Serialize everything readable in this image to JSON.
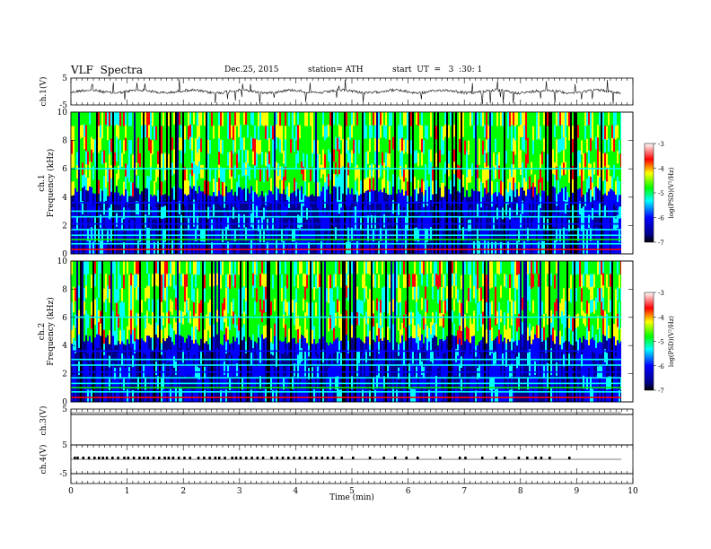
{
  "header": {
    "title": "VLF  Spectra",
    "date": "Dec.25, 2015",
    "station": "station= ATH",
    "start": "start  UT  =   3  :30: 1"
  },
  "colorbar_label": "log(PSD)(V²/Hz)",
  "colorbar_ticks": [
    "-3",
    "-4",
    "-5",
    "-6",
    "-7"
  ],
  "colorbar_colors": [
    "#000000",
    "#00008b",
    "#0000ff",
    "#00ffff",
    "#00ff00",
    "#ffff00",
    "#ff0000",
    "#ffffff"
  ],
  "chart_data": [
    {
      "type": "line",
      "panel": "ch1-waveform",
      "ylabel": "ch.1(V)",
      "yticks": [
        "5",
        "-5"
      ],
      "ylim": [
        -5,
        5
      ],
      "xlim": [
        0,
        10
      ],
      "signal": "continuous noise near 0 V with frequent spikes"
    },
    {
      "type": "heatmap",
      "panel": "ch1-spectrogram",
      "ylabel": "ch.1",
      "ylabel2": "Frequency  (kHz)",
      "yticks": [
        "0",
        "2",
        "4",
        "6",
        "8",
        "10"
      ],
      "ylim": [
        0,
        10
      ],
      "xlim": [
        0,
        9.8
      ],
      "zlim": [
        -7,
        -3
      ],
      "description_values": {
        "background_low_freq_below_4kHz": -6.5,
        "broadband_0_10kHz": -5
      }
    },
    {
      "type": "heatmap",
      "panel": "ch2-spectrogram",
      "ylabel": "ch.2",
      "ylabel2": "Frequency  (kHz)",
      "yticks": [
        "0",
        "2",
        "4",
        "6",
        "8",
        "10"
      ],
      "ylim": [
        0,
        10
      ],
      "xlim": [
        0,
        9.8
      ],
      "zlim": [
        -7,
        -3
      ]
    },
    {
      "type": "line",
      "panel": "ch3-waveform",
      "ylabel": "ch.3(V)",
      "yticks": [
        "5"
      ],
      "ylim": [
        -5,
        5
      ],
      "xlim": [
        0,
        10
      ],
      "signal": "flat near 0 V"
    },
    {
      "type": "line",
      "panel": "ch4-waveform",
      "ylabel": "ch.4(V)",
      "yticks": [
        "5",
        "-5"
      ],
      "ylim": [
        -5,
        5
      ],
      "xlim": [
        0,
        10
      ],
      "signal": "flat baseline with short pulses",
      "pulse_times_min": [
        0.05,
        0.1,
        0.2,
        0.3,
        0.4,
        0.48,
        0.55,
        0.62,
        0.72,
        0.82,
        0.93,
        1.0,
        1.1,
        1.2,
        1.28,
        1.35,
        1.45,
        1.55,
        1.65,
        1.72,
        1.8,
        1.9,
        2.0,
        2.1,
        2.25,
        2.35,
        2.45,
        2.55,
        2.62,
        2.72,
        2.85,
        2.92,
        3.0,
        3.1,
        3.2,
        3.3,
        3.4,
        3.55,
        3.65,
        3.75,
        3.85,
        3.95,
        4.05,
        4.15,
        4.25,
        4.35,
        4.45,
        4.55,
        4.65,
        4.8,
        5.0,
        5.3,
        5.55,
        5.75,
        5.95,
        6.15,
        6.55,
        6.9,
        7.0,
        7.3,
        7.55,
        7.7,
        7.95,
        8.1,
        8.25,
        8.35,
        8.5,
        8.85
      ]
    }
  ],
  "x_axis": {
    "xlabel": "Time  (min)",
    "ticks": [
      "0",
      "1",
      "2",
      "3",
      "4",
      "5",
      "6",
      "7",
      "8",
      "9",
      "10"
    ],
    "xlim": [
      0,
      10
    ]
  }
}
